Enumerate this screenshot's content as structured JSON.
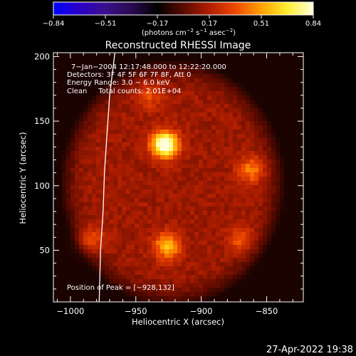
{
  "colorbar": {
    "tick_labels": [
      "−0.84",
      "−0.51",
      "−0.17",
      "0.17",
      "0.51",
      "0.84"
    ],
    "unit_parts": [
      "(photons cm",
      "−2",
      " s",
      "−1",
      " asec",
      "−2",
      ")"
    ],
    "range": [
      -0.84,
      0.84
    ],
    "colors": [
      "#0000ff",
      "#2a00c8",
      "#3a108c",
      "#2a0a50",
      "#000000",
      "#5a0a00",
      "#b01e00",
      "#ee4800",
      "#ffa000",
      "#ffee30",
      "#ffffdc"
    ]
  },
  "chart_data": {
    "type": "heatmap",
    "title": "Reconstructed RHESSI Image",
    "annotations": [
      "7−Jan−2004 12:17:48.000 to 12:22:20.000",
      "Detectors: 3F 4F 5F 6F 7F 8F, Att 0",
      "Energy Range: 3.0 − 6.0 keV",
      "Clean     Total counts: 2.01E+04"
    ],
    "peak_label": "Position of Peak = [−928,132]",
    "xlabel": "Heliocentric X (arcsec)",
    "ylabel": "Heliocentric Y (arcsec)",
    "xlim": [
      -1013,
      -822
    ],
    "ylim": [
      10,
      203
    ],
    "x_ticks": [
      -1000,
      -950,
      -900,
      -850
    ],
    "x_tick_labels": [
      "−1000",
      "−950",
      "−900",
      "−850"
    ],
    "y_ticks": [
      50,
      100,
      150,
      200
    ],
    "y_tick_labels": [
      "50",
      "100",
      "150",
      "200"
    ],
    "peak": [
      -928,
      132
    ],
    "sources": [
      {
        "x": -928,
        "y": 132,
        "value": 0.84
      },
      {
        "x": -926,
        "y": 53,
        "value": 0.45
      },
      {
        "x": -862,
        "y": 112,
        "value": 0.3
      },
      {
        "x": -985,
        "y": 58,
        "value": 0.25
      },
      {
        "x": -870,
        "y": 58,
        "value": 0.22
      },
      {
        "x": -940,
        "y": 170,
        "value": 0.2
      }
    ],
    "limb_curve": [
      [
        -966,
        203
      ],
      [
        -970,
        170
      ],
      [
        -972,
        140
      ],
      [
        -974,
        110
      ],
      [
        -975,
        80
      ],
      [
        -977,
        50
      ],
      [
        -978,
        10
      ]
    ],
    "grid": false
  },
  "footer": {
    "date": "27-Apr-2022 19:38"
  }
}
